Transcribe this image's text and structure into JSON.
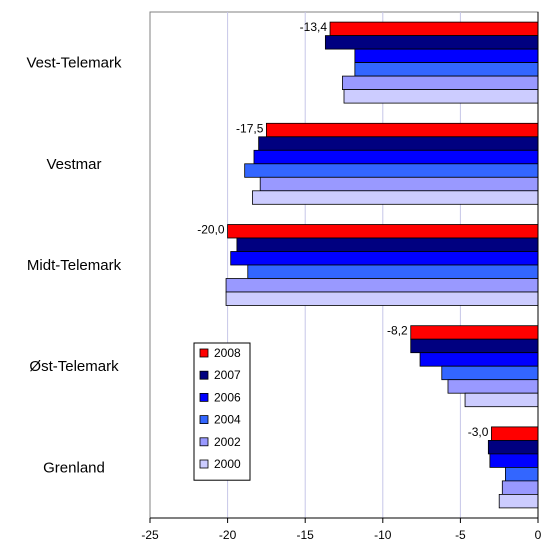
{
  "chart_data": {
    "type": "bar",
    "orientation": "horizontal",
    "categories": [
      "Vest-Telemark",
      "Vestmar",
      "Midt-Telemark",
      "Øst-Telemark",
      "Grenland"
    ],
    "series": [
      {
        "name": "2008",
        "color": "#ff0000",
        "values": [
          -13.4,
          -17.5,
          -20.0,
          -8.2,
          -3.0
        ]
      },
      {
        "name": "2007",
        "color": "#000080",
        "values": [
          -13.7,
          -18.0,
          -19.4,
          -8.2,
          -3.2
        ]
      },
      {
        "name": "2006",
        "color": "#0000ff",
        "values": [
          -11.8,
          -18.3,
          -19.8,
          -7.6,
          -3.1
        ]
      },
      {
        "name": "2004",
        "color": "#3366ff",
        "values": [
          -11.8,
          -18.9,
          -18.7,
          -6.2,
          -2.1
        ]
      },
      {
        "name": "2002",
        "color": "#9999ff",
        "values": [
          -12.6,
          -17.9,
          -20.1,
          -5.8,
          -2.3
        ]
      },
      {
        "name": "2000",
        "color": "#ccccff",
        "values": [
          -12.5,
          -18.4,
          -20.1,
          -4.7,
          -2.5
        ]
      }
    ],
    "data_labels": [
      "-13,4",
      "-17,5",
      "-20,0",
      "-8,2",
      "-3,0"
    ],
    "x_ticks": [
      "-25",
      "-20",
      "-15",
      "-10",
      "-5",
      "0"
    ],
    "x_tick_values": [
      -25,
      -20,
      -15,
      -10,
      -5,
      0
    ],
    "xlim": [
      -25,
      0
    ],
    "grid": true,
    "legend_position": "lower-left"
  }
}
